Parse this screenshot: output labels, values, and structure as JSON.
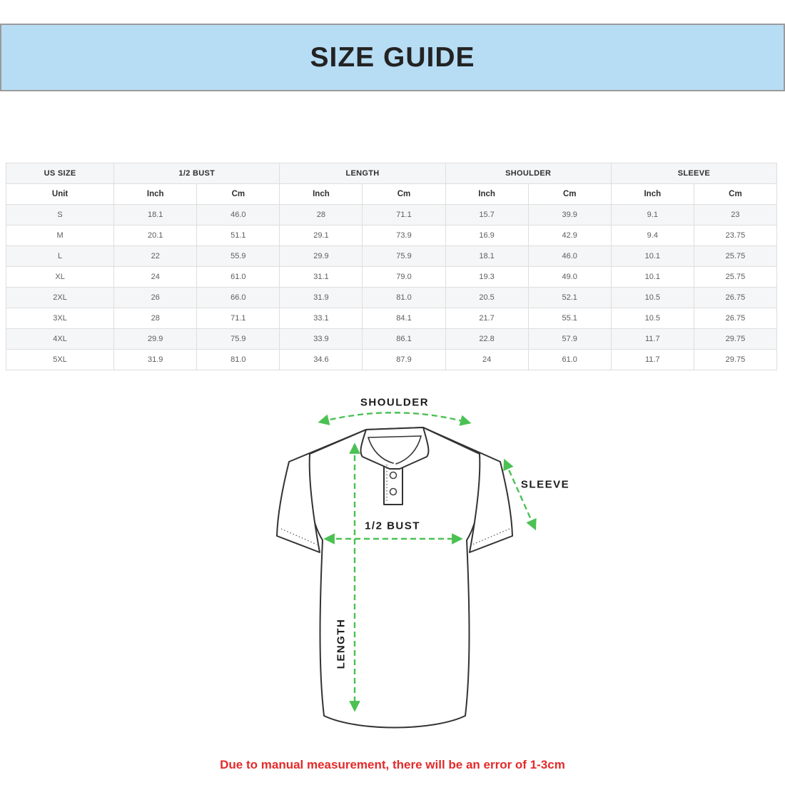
{
  "header": {
    "title": "SIZE GUIDE"
  },
  "table": {
    "column_groups": [
      {
        "label": "US SIZE",
        "span": 1
      },
      {
        "label": "1/2 BUST",
        "span": 2
      },
      {
        "label": "LENGTH",
        "span": 2
      },
      {
        "label": "SHOULDER",
        "span": 2
      },
      {
        "label": "SLEEVE",
        "span": 2
      }
    ],
    "unit_row": [
      "Unit",
      "Inch",
      "Cm",
      "Inch",
      "Cm",
      "Inch",
      "Cm",
      "Inch",
      "Cm"
    ],
    "rows": [
      [
        "S",
        "18.1",
        "46.0",
        "28",
        "71.1",
        "15.7",
        "39.9",
        "9.1",
        "23"
      ],
      [
        "M",
        "20.1",
        "51.1",
        "29.1",
        "73.9",
        "16.9",
        "42.9",
        "9.4",
        "23.75"
      ],
      [
        "L",
        "22",
        "55.9",
        "29.9",
        "75.9",
        "18.1",
        "46.0",
        "10.1",
        "25.75"
      ],
      [
        "XL",
        "24",
        "61.0",
        "31.1",
        "79.0",
        "19.3",
        "49.0",
        "10.1",
        "25.75"
      ],
      [
        "2XL",
        "26",
        "66.0",
        "31.9",
        "81.0",
        "20.5",
        "52.1",
        "10.5",
        "26.75"
      ],
      [
        "3XL",
        "28",
        "71.1",
        "33.1",
        "84.1",
        "21.7",
        "55.1",
        "10.5",
        "26.75"
      ],
      [
        "4XL",
        "29.9",
        "75.9",
        "33.9",
        "86.1",
        "22.8",
        "57.9",
        "11.7",
        "29.75"
      ],
      [
        "5XL",
        "31.9",
        "81.0",
        "34.6",
        "87.9",
        "24",
        "61.0",
        "11.7",
        "29.75"
      ]
    ]
  },
  "diagram": {
    "labels": {
      "shoulder": "SHOULDER",
      "sleeve": "SLEEVE",
      "half_bust": "1/2 BUST",
      "length": "LENGTH"
    },
    "arrow_color": "#4ac152",
    "outline_color": "#333333"
  },
  "disclaimer": "Due to manual measurement, there will be an error of 1-3cm",
  "colors": {
    "banner_bg": "#b7ddf5",
    "banner_border": "#9b9b9b",
    "title_text": "#232323",
    "table_stripe": "#f5f6f7",
    "table_border": "#dedede",
    "disclaimer_red": "#e42a2a"
  }
}
